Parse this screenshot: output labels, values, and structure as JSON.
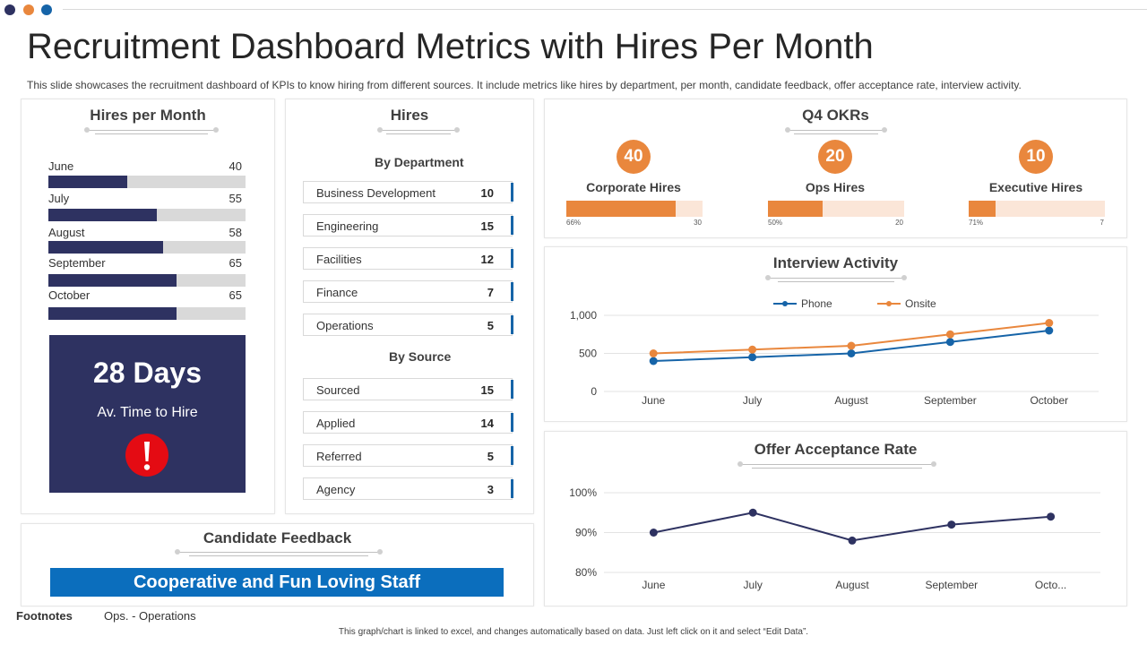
{
  "colors": {
    "navy": "#2e3261",
    "orange": "#e9873d",
    "blue": "#1664a8",
    "red": "#e40b13",
    "track": "#d9d9d9",
    "light_orange": "#fbe6d8"
  },
  "page": {
    "title": "Recruitment Dashboard Metrics with Hires Per Month",
    "subtitle": "This slide showcases the recruitment dashboard of KPIs to know hiring from different sources. It include metrics like hires by department, per month, candidate feedback, offer acceptance rate, interview activity."
  },
  "hires_per_month": {
    "title": "Hires per Month",
    "scale_max": 100,
    "rows": [
      {
        "label": "June",
        "value": "40"
      },
      {
        "label": "July",
        "value": "55"
      },
      {
        "label": "August",
        "value": "58"
      },
      {
        "label": "September",
        "value": "65"
      },
      {
        "label": "October",
        "value": "65"
      }
    ],
    "time_to_hire": {
      "value": "28 Days",
      "label": "Av. Time to Hire",
      "icon": "exclamation-alert-icon"
    }
  },
  "hires": {
    "title": "Hires",
    "by_department": {
      "heading": "By Department",
      "rows": [
        {
          "label": "Business Development",
          "value": "10"
        },
        {
          "label": "Engineering",
          "value": "15"
        },
        {
          "label": "Facilities",
          "value": "12"
        },
        {
          "label": "Finance",
          "value": "7"
        },
        {
          "label": "Operations",
          "value": "5"
        }
      ]
    },
    "by_source": {
      "heading": "By  Source",
      "rows": [
        {
          "label": "Sourced",
          "value": "15"
        },
        {
          "label": "Applied",
          "value": "14"
        },
        {
          "label": "Referred",
          "value": "5"
        },
        {
          "label": "Agency",
          "value": "3"
        }
      ]
    }
  },
  "okrs": {
    "title": "Q4 OKRs",
    "items": [
      {
        "value": "40",
        "label": "Corporate Hires",
        "fill_fraction": 0.8,
        "left": "66%",
        "right": "30"
      },
      {
        "value": "20",
        "label": "Ops Hires",
        "fill_fraction": 0.4,
        "left": "50%",
        "right": "20"
      },
      {
        "value": "10",
        "label": "Executive Hires",
        "fill_fraction": 0.2,
        "left": "71%",
        "right": "7"
      }
    ]
  },
  "candidate_feedback": {
    "title": "Candidate Feedback",
    "text": "Cooperative and Fun Loving Staff"
  },
  "chart_data": [
    {
      "type": "line",
      "title": "Interview Activity",
      "categories": [
        "June",
        "July",
        "August",
        "September",
        "October"
      ],
      "yticks": [
        "1,000",
        "500",
        "0"
      ],
      "ylim": [
        0,
        1000
      ],
      "legend": "top-center",
      "grid": true,
      "series": [
        {
          "name": "Phone",
          "values": [
            400,
            450,
            500,
            650,
            800
          ],
          "color": "#1664a8"
        },
        {
          "name": "Onsite",
          "values": [
            500,
            550,
            600,
            750,
            900
          ],
          "color": "#e9873d"
        }
      ]
    },
    {
      "type": "line",
      "title": "Offer Acceptance Rate",
      "categories": [
        "June",
        "July",
        "August",
        "September",
        "Octo..."
      ],
      "yticks": [
        "100%",
        "90%",
        "80%"
      ],
      "ylim": [
        80,
        100
      ],
      "grid": true,
      "series": [
        {
          "values": [
            90,
            95,
            88,
            92,
            94
          ],
          "color": "#2e3261"
        }
      ]
    }
  ],
  "footnotes": {
    "label": "Footnotes",
    "text": "Ops. - Operations"
  },
  "note": "This graph/chart is linked to excel, and changes automatically based on data. Just left click on it and select “Edit Data”."
}
